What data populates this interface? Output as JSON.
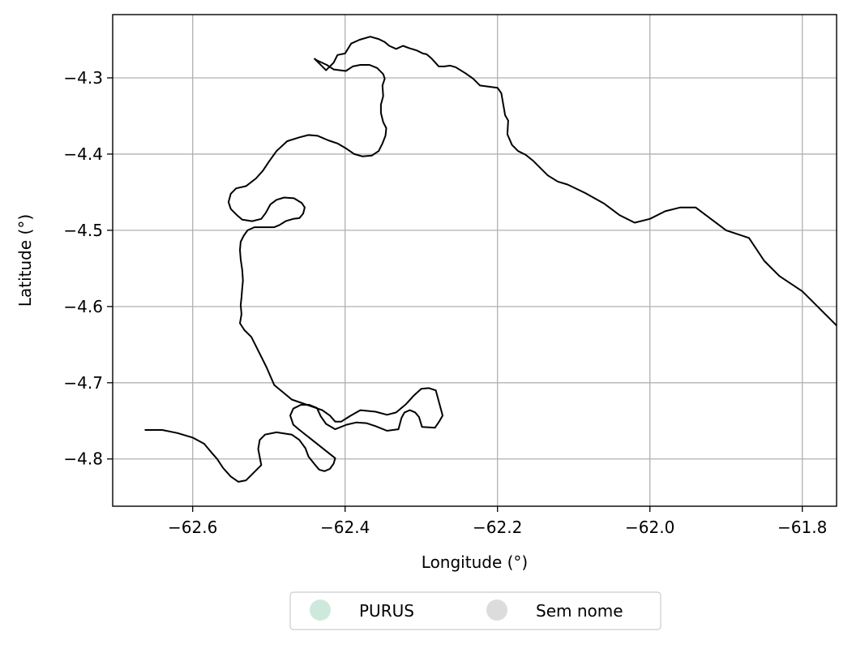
{
  "chart_data": {
    "type": "map",
    "xlabel": "Longitude (°)",
    "ylabel": "Latitude (°)",
    "xlim": [
      -62.705,
      -61.755
    ],
    "ylim": [
      -4.862,
      -4.217
    ],
    "grid": true,
    "x_ticks": [
      -62.6,
      -62.4,
      -62.2,
      -62.0,
      -61.8
    ],
    "y_ticks": [
      -4.3,
      -4.4,
      -4.5,
      -4.6,
      -4.7,
      -4.8
    ],
    "x_tick_labels": [
      "−62.6",
      "−62.4",
      "−62.2",
      "−62.0",
      "−61.8"
    ],
    "y_tick_labels": [
      "−4.3",
      "−4.4",
      "−4.5",
      "−4.6",
      "−4.7",
      "−4.8"
    ],
    "legend_placement": "bottom-center, below axes",
    "legend": [
      {
        "label": "PURUS",
        "color": "#cde9dc"
      },
      {
        "label": "Sem nome",
        "color": "#dcdcdc"
      }
    ],
    "boundary_color": "#000000",
    "boundary": [
      [
        -62.663,
        -4.762
      ],
      [
        -62.64,
        -4.762
      ],
      [
        -62.62,
        -4.766
      ],
      [
        -62.6,
        -4.772
      ],
      [
        -62.585,
        -4.78
      ],
      [
        -62.575,
        -4.792
      ],
      [
        -62.568,
        -4.8
      ],
      [
        -62.56,
        -4.812
      ],
      [
        -62.55,
        -4.823
      ],
      [
        -62.54,
        -4.83
      ],
      [
        -62.53,
        -4.828
      ],
      [
        -62.51,
        -4.808
      ],
      [
        -62.514,
        -4.787
      ],
      [
        -62.512,
        -4.775
      ],
      [
        -62.505,
        -4.768
      ],
      [
        -62.49,
        -4.765
      ],
      [
        -62.47,
        -4.768
      ],
      [
        -62.46,
        -4.775
      ],
      [
        -62.452,
        -4.786
      ],
      [
        -62.448,
        -4.797
      ],
      [
        -62.44,
        -4.807
      ],
      [
        -62.434,
        -4.814
      ],
      [
        -62.427,
        -4.816
      ],
      [
        -62.42,
        -4.813
      ],
      [
        -62.415,
        -4.806
      ],
      [
        -62.413,
        -4.799
      ],
      [
        -62.461,
        -4.761
      ],
      [
        -62.468,
        -4.755
      ],
      [
        -62.472,
        -4.743
      ],
      [
        -62.468,
        -4.734
      ],
      [
        -62.458,
        -4.729
      ],
      [
        -62.447,
        -4.729
      ],
      [
        -62.437,
        -4.733
      ],
      [
        -62.432,
        -4.744
      ],
      [
        -62.425,
        -4.754
      ],
      [
        -62.413,
        -4.761
      ],
      [
        -62.398,
        -4.755
      ],
      [
        -62.385,
        -4.752
      ],
      [
        -62.372,
        -4.753
      ],
      [
        -62.36,
        -4.757
      ],
      [
        -62.345,
        -4.763
      ],
      [
        -62.33,
        -4.761
      ],
      [
        -62.326,
        -4.746
      ],
      [
        -62.322,
        -4.739
      ],
      [
        -62.315,
        -4.736
      ],
      [
        -62.308,
        -4.739
      ],
      [
        -62.303,
        -4.745
      ],
      [
        -62.299,
        -4.758
      ],
      [
        -62.282,
        -4.759
      ],
      [
        -62.276,
        -4.75
      ],
      [
        -62.272,
        -4.743
      ],
      [
        -62.275,
        -4.732
      ],
      [
        -62.281,
        -4.71
      ],
      [
        -62.29,
        -4.707
      ],
      [
        -62.3,
        -4.708
      ],
      [
        -62.31,
        -4.717
      ],
      [
        -62.32,
        -4.728
      ],
      [
        -62.333,
        -4.739
      ],
      [
        -62.345,
        -4.742
      ],
      [
        -62.36,
        -4.738
      ],
      [
        -62.38,
        -4.736
      ],
      [
        -62.394,
        -4.744
      ],
      [
        -62.405,
        -4.751
      ],
      [
        -62.413,
        -4.751
      ],
      [
        -62.42,
        -4.743
      ],
      [
        -62.43,
        -4.736
      ],
      [
        -62.45,
        -4.729
      ],
      [
        -62.47,
        -4.722
      ],
      [
        -62.482,
        -4.712
      ],
      [
        -62.493,
        -4.703
      ],
      [
        -62.503,
        -4.68
      ],
      [
        -62.513,
        -4.66
      ],
      [
        -62.523,
        -4.64
      ],
      [
        -62.532,
        -4.631
      ],
      [
        -62.538,
        -4.622
      ],
      [
        -62.536,
        -4.61
      ],
      [
        -62.537,
        -4.598
      ],
      [
        -62.536,
        -4.588
      ],
      [
        -62.535,
        -4.576
      ],
      [
        -62.534,
        -4.566
      ],
      [
        -62.535,
        -4.552
      ],
      [
        -62.537,
        -4.538
      ],
      [
        -62.538,
        -4.526
      ],
      [
        -62.537,
        -4.515
      ],
      [
        -62.533,
        -4.507
      ],
      [
        -62.528,
        -4.5
      ],
      [
        -62.519,
        -4.496
      ],
      [
        -62.505,
        -4.496
      ],
      [
        -62.493,
        -4.496
      ],
      [
        -62.486,
        -4.493
      ],
      [
        -62.478,
        -4.488
      ],
      [
        -62.468,
        -4.485
      ],
      [
        -62.46,
        -4.484
      ],
      [
        -62.455,
        -4.478
      ],
      [
        -62.453,
        -4.47
      ],
      [
        -62.457,
        -4.464
      ],
      [
        -62.467,
        -4.458
      ],
      [
        -62.48,
        -4.457
      ],
      [
        -62.49,
        -4.46
      ],
      [
        -62.498,
        -4.466
      ],
      [
        -62.504,
        -4.477
      ],
      [
        -62.51,
        -4.485
      ],
      [
        -62.522,
        -4.488
      ],
      [
        -62.535,
        -4.486
      ],
      [
        -62.542,
        -4.48
      ],
      [
        -62.55,
        -4.472
      ],
      [
        -62.553,
        -4.463
      ],
      [
        -62.55,
        -4.452
      ],
      [
        -62.543,
        -4.445
      ],
      [
        -62.53,
        -4.442
      ],
      [
        -62.517,
        -4.432
      ],
      [
        -62.508,
        -4.422
      ],
      [
        -62.5,
        -4.41
      ],
      [
        -62.49,
        -4.396
      ],
      [
        -62.476,
        -4.383
      ],
      [
        -62.46,
        -4.378
      ],
      [
        -62.448,
        -4.375
      ],
      [
        -62.436,
        -4.376
      ],
      [
        -62.422,
        -4.382
      ],
      [
        -62.41,
        -4.386
      ],
      [
        -62.398,
        -4.393
      ],
      [
        -62.388,
        -4.4
      ],
      [
        -62.377,
        -4.403
      ],
      [
        -62.365,
        -4.402
      ],
      [
        -62.356,
        -4.396
      ],
      [
        -62.351,
        -4.386
      ],
      [
        -62.347,
        -4.376
      ],
      [
        -62.346,
        -4.366
      ],
      [
        -62.35,
        -4.358
      ],
      [
        -62.353,
        -4.346
      ],
      [
        -62.353,
        -4.335
      ],
      [
        -62.35,
        -4.324
      ],
      [
        -62.351,
        -4.31
      ],
      [
        -62.348,
        -4.301
      ],
      [
        -62.35,
        -4.295
      ],
      [
        -62.358,
        -4.287
      ],
      [
        -62.368,
        -4.283
      ],
      [
        -62.38,
        -4.283
      ],
      [
        -62.39,
        -4.285
      ],
      [
        -62.399,
        -4.291
      ],
      [
        -62.415,
        -4.289
      ],
      [
        -62.424,
        -4.283
      ],
      [
        -62.437,
        -4.277
      ],
      [
        -62.44,
        -4.275
      ],
      [
        -62.435,
        -4.28
      ],
      [
        -62.425,
        -4.29
      ],
      [
        -62.415,
        -4.28
      ],
      [
        -62.41,
        -4.27
      ],
      [
        -62.4,
        -4.268
      ],
      [
        -62.392,
        -4.255
      ],
      [
        -62.381,
        -4.25
      ],
      [
        -62.367,
        -4.246
      ],
      [
        -62.356,
        -4.249
      ],
      [
        -62.348,
        -4.253
      ],
      [
        -62.342,
        -4.258
      ],
      [
        -62.333,
        -4.262
      ],
      [
        -62.324,
        -4.258
      ],
      [
        -62.316,
        -4.261
      ],
      [
        -62.306,
        -4.264
      ],
      [
        -62.298,
        -4.268
      ],
      [
        -62.293,
        -4.269
      ],
      [
        -62.287,
        -4.274
      ],
      [
        -62.277,
        -4.285
      ],
      [
        -62.27,
        -4.285
      ],
      [
        -62.262,
        -4.284
      ],
      [
        -62.255,
        -4.286
      ],
      [
        -62.242,
        -4.294
      ],
      [
        -62.232,
        -4.301
      ],
      [
        -62.223,
        -4.31
      ],
      [
        -62.2,
        -4.313
      ],
      [
        -62.195,
        -4.32
      ],
      [
        -62.19,
        -4.349
      ],
      [
        -62.186,
        -4.356
      ],
      [
        -62.187,
        -4.374
      ],
      [
        -62.181,
        -4.388
      ],
      [
        -62.173,
        -4.396
      ],
      [
        -62.163,
        -4.401
      ],
      [
        -62.153,
        -4.409
      ],
      [
        -62.144,
        -4.418
      ],
      [
        -62.134,
        -4.428
      ],
      [
        -62.121,
        -4.436
      ],
      [
        -62.108,
        -4.44
      ],
      [
        -62.085,
        -4.451
      ],
      [
        -62.06,
        -4.465
      ],
      [
        -62.04,
        -4.48
      ],
      [
        -62.02,
        -4.49
      ],
      [
        -62.0,
        -4.485
      ],
      [
        -61.98,
        -4.475
      ],
      [
        -61.96,
        -4.47
      ],
      [
        -61.94,
        -4.47
      ],
      [
        -61.92,
        -4.485
      ],
      [
        -61.9,
        -4.5
      ],
      [
        -61.87,
        -4.51
      ],
      [
        -61.85,
        -4.54
      ],
      [
        -61.83,
        -4.56
      ],
      [
        -61.8,
        -4.58
      ],
      [
        -61.78,
        -4.6
      ],
      [
        -61.76,
        -4.62
      ],
      [
        -61.74,
        -4.64
      ]
    ]
  }
}
